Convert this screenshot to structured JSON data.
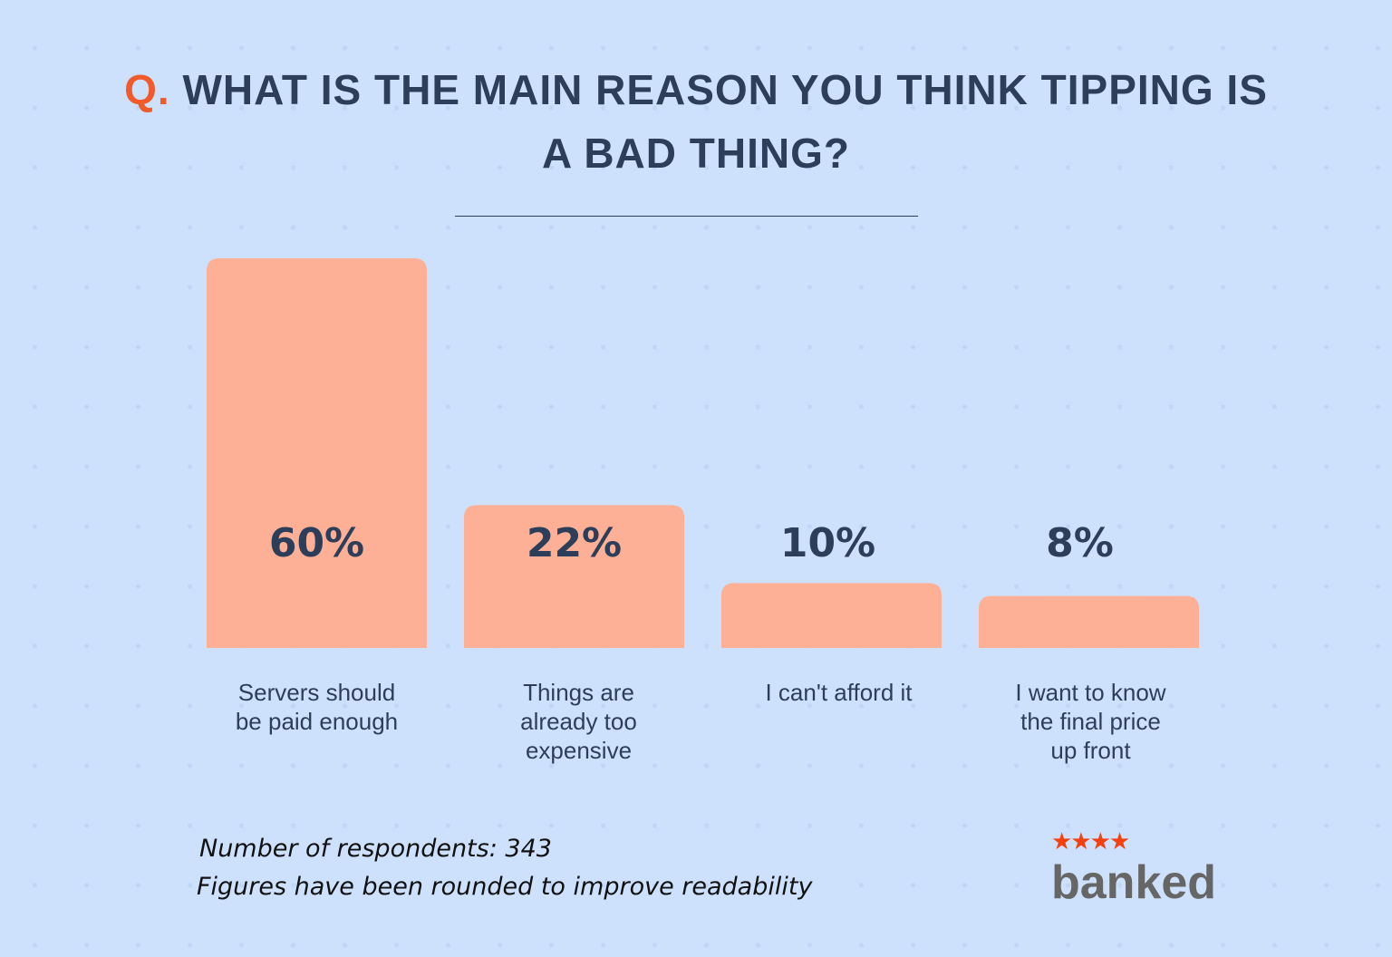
{
  "title": {
    "prefix": "Q.",
    "text": "WHAT IS THE MAIN REASON YOU THINK TIPPING IS A BAD THING?"
  },
  "chart_data": {
    "type": "bar",
    "categories": [
      "Servers should be paid enough",
      "Things are already too expensive",
      "I can't afford it",
      "I want to know the final price up front"
    ],
    "values": [
      60,
      22,
      10,
      8
    ],
    "value_labels": [
      "60%",
      "22%",
      "10%",
      "8%"
    ],
    "ylim": [
      0,
      60
    ],
    "grid": false,
    "bar_color": "#fdb095"
  },
  "notes": {
    "respondents": "Number of respondents: 343",
    "rounding": "Figures have been rounded to improve readability"
  },
  "logo": {
    "stars": "★★★★",
    "text": "banked"
  },
  "colors": {
    "background": "#cde1fd",
    "accent": "#f15a2b",
    "text": "#2c3e5a"
  }
}
